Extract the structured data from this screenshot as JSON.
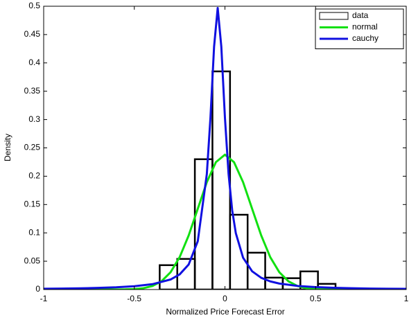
{
  "chart_data": {
    "type": "histogram",
    "xlabel": "Normalized Price Forecast Error",
    "ylabel": "Density",
    "name": "data",
    "color": "#000000",
    "bins": [
      -0.36,
      -0.263,
      -0.166,
      -0.069,
      0.028,
      0.125,
      0.222,
      0.319,
      0.416,
      0.513,
      0.61
    ],
    "values": [
      0.043,
      0.054,
      0.23,
      0.385,
      0.132,
      0.065,
      0.021,
      0.02,
      0.032,
      0.01
    ],
    "series": [
      {
        "name": "normal",
        "color": "#11e011",
        "type": "line",
        "x": [
          -1,
          -0.8,
          -0.6,
          -0.55,
          -0.5,
          -0.45,
          -0.4,
          -0.35,
          -0.3,
          -0.25,
          -0.2,
          -0.15,
          -0.1,
          -0.05,
          0,
          0.05,
          0.1,
          0.15,
          0.2,
          0.25,
          0.3,
          0.35,
          0.4,
          0.45,
          0.5,
          0.55,
          0.6,
          0.8,
          1
        ],
        "values": [
          0,
          0,
          6e-05,
          0.00024,
          0.00079,
          0.00234,
          0.00616,
          0.01452,
          0.0305,
          0.0571,
          0.0955,
          0.1424,
          0.1895,
          0.2248,
          0.238,
          0.2248,
          0.1895,
          0.1424,
          0.0955,
          0.0571,
          0.0305,
          0.01452,
          0.00616,
          0.00234,
          0.00079,
          0.00024,
          6e-05,
          0,
          0
        ]
      },
      {
        "name": "cauchy",
        "color": "#1010e0",
        "type": "line",
        "x": [
          -1,
          -0.9,
          -0.8,
          -0.7,
          -0.6,
          -0.5,
          -0.4,
          -0.3,
          -0.25,
          -0.2,
          -0.15,
          -0.1,
          -0.08,
          -0.06,
          -0.04,
          -0.02,
          0,
          0.02,
          0.04,
          0.06,
          0.1,
          0.15,
          0.2,
          0.25,
          0.3,
          0.4,
          0.5,
          0.6,
          0.7,
          0.8,
          0.9,
          1
        ],
        "values": [
          0.00134,
          0.00167,
          0.00214,
          0.00284,
          0.00393,
          0.00581,
          0.00941,
          0.01772,
          0.02666,
          0.04422,
          0.0851,
          0.2037,
          0.303,
          0.4284,
          0.497,
          0.4284,
          0.303,
          0.2037,
          0.1396,
          0.0994,
          0.0562,
          0.0322,
          0.0207,
          0.01435,
          0.01052,
          0.00634,
          0.00423,
          0.00302,
          0.00226,
          0.00175,
          0.0014,
          0.00115
        ]
      }
    ],
    "xlim": [
      -1,
      1
    ],
    "ylim": [
      0,
      0.5
    ],
    "xticks": [
      -1,
      -0.5,
      0,
      0.5,
      1
    ],
    "yticks": [
      0,
      0.05,
      0.1,
      0.15,
      0.2,
      0.25,
      0.3,
      0.35,
      0.4,
      0.45,
      0.5
    ],
    "legend": "upper right",
    "grid": false
  }
}
